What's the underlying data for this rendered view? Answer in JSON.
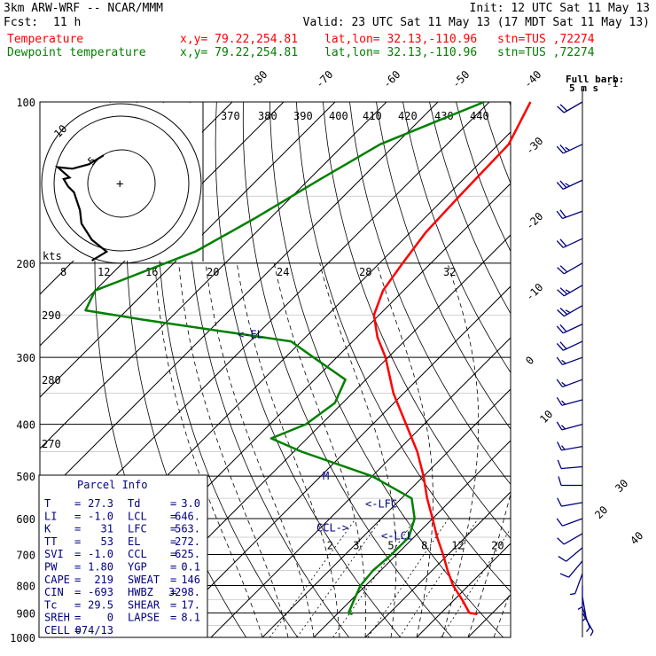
{
  "header": {
    "title": "3km ARW-WRF -- NCAR/MMM",
    "init": "Init: 12 UTC Sat 11 May 13",
    "fcst_label": "Fcst:",
    "fcst_value": "11 h",
    "valid": "Valid: 23 UTC Sat 11 May 13 (17 MDT Sat 11 May 13)",
    "temp_line": {
      "name": "Temperature",
      "xy": "x,y= 79.22,254.81",
      "latlon": "lat,lon= 32.13,-110.96",
      "stn": "stn=TUS ,72274"
    },
    "dew_line": {
      "name": "Dewpoint temperature",
      "xy": "x,y= 79.22,254.81",
      "latlon": "lat,lon= 32.13,-110.96",
      "stn": "stn=TUS ,72274"
    },
    "barb_note_1": "Full barb:",
    "barb_note_2": "5 m s",
    "barb_note_sup": "-1"
  },
  "colors": {
    "temperature": "#ff0000",
    "dewpoint": "#008000",
    "text_blue": "#000080",
    "hodograph_rings": "#000000"
  },
  "hodograph": {
    "units_label": "kts",
    "ring_labels": [
      "5",
      "10"
    ],
    "origin_marker": "+"
  },
  "parcel_info": {
    "title": "Parcel Info",
    "rows": [
      [
        "T",
        "=",
        "27.3",
        "Td",
        "=",
        "3.0"
      ],
      [
        "LI",
        "=",
        "-1.0",
        "LCL",
        "=",
        "646."
      ],
      [
        "K",
        "=",
        "31",
        "LFC",
        "=",
        "563."
      ],
      [
        "TT",
        "=",
        "53",
        "EL",
        "=",
        "272."
      ],
      [
        "SVI",
        "=",
        "-1.0",
        "CCL",
        "=",
        "625."
      ],
      [
        "PW",
        "=",
        "1.80",
        "YGP",
        "=",
        "0.1"
      ],
      [
        "CAPE",
        "=",
        "219",
        "SWEAT",
        "=",
        "146"
      ],
      [
        "CIN",
        "=",
        "-693",
        "HWBZ",
        "=",
        "3298."
      ],
      [
        "Tc",
        "=",
        "29.5",
        "SHEAR",
        "=",
        "17."
      ],
      [
        "SREH",
        "=",
        "0",
        "LAPSE",
        "=",
        "8.1"
      ],
      [
        "CELL",
        "=",
        "074/13",
        "",
        "",
        ""
      ]
    ]
  },
  "chart_data": {
    "type": "line",
    "chart_kind": "skew-T log-p",
    "y_axis": {
      "scale": "log",
      "ylim": [
        1000,
        100
      ],
      "ticks": [
        100,
        200,
        300,
        400,
        500,
        600,
        700,
        800,
        900,
        1000
      ]
    },
    "isotherm_labels": [
      "-80",
      "-70",
      "-60",
      "-50",
      "-40",
      "-30",
      "-20",
      "-10",
      "0",
      "10",
      "20",
      "30",
      "40"
    ],
    "theta_e_labels": [
      "370",
      "380",
      "390",
      "400",
      "410",
      "420",
      "430",
      "440"
    ],
    "theta_e_values": [
      370,
      380,
      390,
      400,
      410,
      420,
      430,
      440
    ],
    "mixing_ratio_labels_upper": [
      "8",
      "12",
      "16",
      "20",
      "24",
      "28",
      "32"
    ],
    "mixing_ratio_values_upper": [
      8,
      12,
      16,
      20,
      24,
      28,
      32
    ],
    "mixing_ratio_labels_lower": [
      "2",
      "3",
      "5",
      "8",
      "12",
      "20"
    ],
    "mixing_ratio_values_lower": [
      2,
      3,
      5,
      8,
      12,
      20
    ],
    "dry_adiabat_labels": [
      "290",
      "280",
      "270"
    ],
    "dry_adiabat_values": [
      290,
      280,
      270
    ],
    "annotations": [
      {
        "text": "<-EL",
        "p": 272
      },
      {
        "text": "<-LFC",
        "p": 563
      },
      {
        "text": "CCL->",
        "p": 625
      },
      {
        "text": "<-LCL",
        "p": 646
      },
      {
        "text": "M",
        "p": 500
      }
    ],
    "series": [
      {
        "name": "Temperature",
        "color": "#ff0000",
        "points": [
          {
            "p": 100,
            "t": -62.0
          },
          {
            "p": 120,
            "t": -58.0
          },
          {
            "p": 150,
            "t": -57.5
          },
          {
            "p": 175,
            "t": -57.0
          },
          {
            "p": 200,
            "t": -55.5
          },
          {
            "p": 225,
            "t": -54.0
          },
          {
            "p": 250,
            "t": -51.0
          },
          {
            "p": 275,
            "t": -46.0
          },
          {
            "p": 300,
            "t": -40.5
          },
          {
            "p": 350,
            "t": -32.0
          },
          {
            "p": 400,
            "t": -23.5
          },
          {
            "p": 450,
            "t": -16.0
          },
          {
            "p": 500,
            "t": -10.0
          },
          {
            "p": 550,
            "t": -5.0
          },
          {
            "p": 600,
            "t": 0.0
          },
          {
            "p": 650,
            "t": 4.5
          },
          {
            "p": 700,
            "t": 9.0
          },
          {
            "p": 750,
            "t": 13.0
          },
          {
            "p": 800,
            "t": 17.0
          },
          {
            "p": 850,
            "t": 21.5
          },
          {
            "p": 900,
            "t": 25.5
          },
          {
            "p": 905,
            "t": 27.3
          }
        ]
      },
      {
        "name": "Dewpoint temperature",
        "color": "#008000",
        "points": [
          {
            "p": 100,
            "t": -71.0
          },
          {
            "p": 120,
            "t": -83.0
          },
          {
            "p": 140,
            "t": -88.0
          },
          {
            "p": 165,
            "t": -93.0
          },
          {
            "p": 190,
            "t": -98.0
          },
          {
            "p": 225,
            "t": -110.0
          },
          {
            "p": 245,
            "t": -108.0
          },
          {
            "p": 255,
            "t": -95.0
          },
          {
            "p": 280,
            "t": -62.0
          },
          {
            "p": 300,
            "t": -54.5
          },
          {
            "p": 330,
            "t": -44.0
          },
          {
            "p": 365,
            "t": -41.5
          },
          {
            "p": 400,
            "t": -43.0
          },
          {
            "p": 425,
            "t": -47.0
          },
          {
            "p": 450,
            "t": -38.5
          },
          {
            "p": 500,
            "t": -20.0
          },
          {
            "p": 550,
            "t": -8.0
          },
          {
            "p": 600,
            "t": -3.5
          },
          {
            "p": 650,
            "t": -1.0
          },
          {
            "p": 700,
            "t": -1.0
          },
          {
            "p": 750,
            "t": -1.5
          },
          {
            "p": 800,
            "t": -1.0
          },
          {
            "p": 850,
            "t": 0.5
          },
          {
            "p": 900,
            "t": 2.0
          },
          {
            "p": 905,
            "t": 3.0
          }
        ]
      }
    ],
    "wind_barbs": [
      {
        "p": 100,
        "dir": 240,
        "spd": 20
      },
      {
        "p": 120,
        "dir": 245,
        "spd": 25
      },
      {
        "p": 140,
        "dir": 245,
        "spd": 25
      },
      {
        "p": 160,
        "dir": 250,
        "spd": 20
      },
      {
        "p": 180,
        "dir": 245,
        "spd": 20
      },
      {
        "p": 200,
        "dir": 240,
        "spd": 20
      },
      {
        "p": 220,
        "dir": 240,
        "spd": 25
      },
      {
        "p": 240,
        "dir": 240,
        "spd": 25
      },
      {
        "p": 260,
        "dir": 245,
        "spd": 20
      },
      {
        "p": 280,
        "dir": 245,
        "spd": 20
      },
      {
        "p": 300,
        "dir": 250,
        "spd": 15
      },
      {
        "p": 330,
        "dir": 250,
        "spd": 15
      },
      {
        "p": 360,
        "dir": 255,
        "spd": 15
      },
      {
        "p": 400,
        "dir": 255,
        "spd": 15
      },
      {
        "p": 440,
        "dir": 260,
        "spd": 15
      },
      {
        "p": 480,
        "dir": 265,
        "spd": 10
      },
      {
        "p": 520,
        "dir": 270,
        "spd": 10
      },
      {
        "p": 560,
        "dir": 260,
        "spd": 10
      },
      {
        "p": 600,
        "dir": 250,
        "spd": 10
      },
      {
        "p": 640,
        "dir": 240,
        "spd": 10
      },
      {
        "p": 680,
        "dir": 230,
        "spd": 10
      },
      {
        "p": 720,
        "dir": 220,
        "spd": 10
      },
      {
        "p": 760,
        "dir": 200,
        "spd": 5
      },
      {
        "p": 800,
        "dir": 180,
        "spd": 5
      },
      {
        "p": 840,
        "dir": 170,
        "spd": 5
      },
      {
        "p": 880,
        "dir": 160,
        "spd": 5
      },
      {
        "p": 900,
        "dir": 150,
        "spd": 5
      }
    ],
    "hodograph_path": [
      {
        "u": -2.0,
        "v": -5.2
      },
      {
        "u": -1.0,
        "v": -4.6
      },
      {
        "u": -2.0,
        "v": -3.8
      },
      {
        "u": -2.7,
        "v": -2.7
      },
      {
        "u": -2.8,
        "v": -1.8
      },
      {
        "u": -3.2,
        "v": -0.6
      },
      {
        "u": -3.6,
        "v": -0.2
      },
      {
        "u": -3.9,
        "v": 0.3
      },
      {
        "u": -3.5,
        "v": 0.4
      },
      {
        "u": -4.3,
        "v": 1.1
      },
      {
        "u": -3.3,
        "v": 1.0
      },
      {
        "u": -2.2,
        "v": 1.3
      },
      {
        "u": -1.2,
        "v": 1.9
      }
    ]
  }
}
